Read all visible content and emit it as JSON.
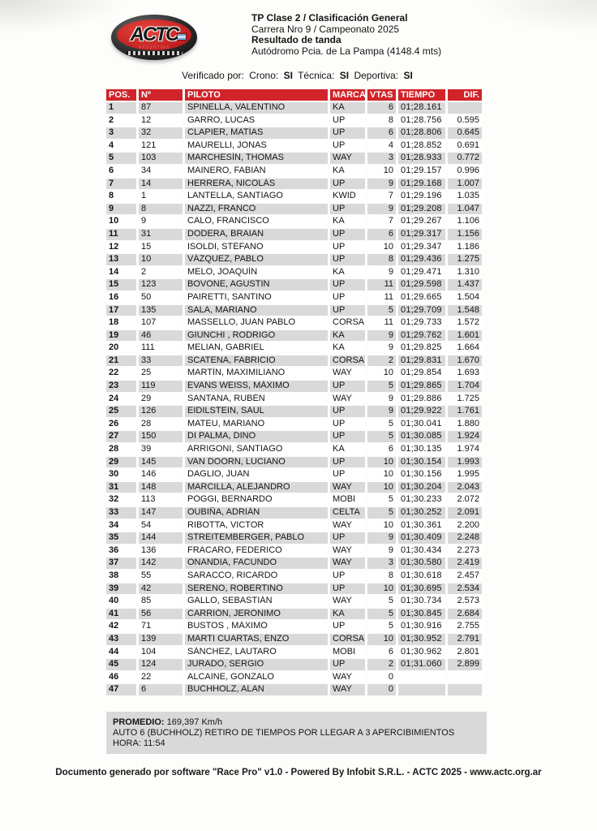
{
  "logo": {
    "text": "ACTC",
    "subtext": "ARGENTINA"
  },
  "header": {
    "title": "TP Clase 2 / Clasificación General",
    "subtitle": "Carrera Nro 9 / Campeonato 2025",
    "result_label": "Resultado de tanda",
    "venue": "Autódromo Pcia. de La Pampa (4148.4 mts)"
  },
  "verification": {
    "prefix": "Verificado por:",
    "crono_label": "Crono:",
    "crono_value": "SI",
    "tecnica_label": "Técnica:",
    "tecnica_value": "SI",
    "deportiva_label": "Deportiva:",
    "deportiva_value": "SI"
  },
  "table": {
    "columns": [
      "POS.",
      "Nº",
      "PILOTO",
      "MARCA",
      "VTAS",
      "TIEMPO",
      "DIF."
    ],
    "rows": [
      [
        "1",
        "87",
        "SPINELLA, VALENTINO",
        "KA",
        "6",
        "01;28.161",
        ""
      ],
      [
        "2",
        "12",
        "GARRO, LUCAS",
        "UP",
        "8",
        "01;28.756",
        "0.595"
      ],
      [
        "3",
        "32",
        "CLAPIER, MATÍAS",
        "UP",
        "6",
        "01;28.806",
        "0.645"
      ],
      [
        "4",
        "121",
        "MAURELLI, JONAS",
        "UP",
        "4",
        "01;28.852",
        "0.691"
      ],
      [
        "5",
        "103",
        "MARCHESÍN, THOMAS",
        "WAY",
        "3",
        "01;28.933",
        "0.772"
      ],
      [
        "6",
        "34",
        "MAINERO, FABIÁN",
        "KA",
        "10",
        "01;29.157",
        "0.996"
      ],
      [
        "7",
        "14",
        "HERRERA, NICOLÁS",
        "UP",
        "9",
        "01;29.168",
        "1.007"
      ],
      [
        "8",
        "1",
        "LANTELLA, SANTIAGO",
        "KWID",
        "7",
        "01;29.196",
        "1.035"
      ],
      [
        "9",
        "8",
        "NAZZI, FRANCO",
        "UP",
        "9",
        "01;29.208",
        "1.047"
      ],
      [
        "10",
        "9",
        "CALO, FRANCISCO",
        "KA",
        "7",
        "01;29.267",
        "1.106"
      ],
      [
        "11",
        "31",
        "DODERA, BRAIAN",
        "UP",
        "6",
        "01;29.317",
        "1.156"
      ],
      [
        "12",
        "15",
        "ISOLDI, STÉFANO",
        "UP",
        "10",
        "01;29.347",
        "1.186"
      ],
      [
        "13",
        "10",
        "VÁZQUEZ, PABLO",
        "UP",
        "8",
        "01;29.436",
        "1.275"
      ],
      [
        "14",
        "2",
        "MELO, JOAQUÍN",
        "KA",
        "9",
        "01;29.471",
        "1.310"
      ],
      [
        "15",
        "123",
        "BOVONE, AGUSTIN",
        "UP",
        "11",
        "01;29.598",
        "1.437"
      ],
      [
        "16",
        "50",
        "PAIRETTI, SANTINO",
        "UP",
        "11",
        "01;29.665",
        "1.504"
      ],
      [
        "17",
        "135",
        "SALA, MARIANO",
        "UP",
        "5",
        "01;29.709",
        "1.548"
      ],
      [
        "18",
        "107",
        "MASSELLO, JUAN PABLO",
        "CORSA",
        "11",
        "01;29.733",
        "1.572"
      ],
      [
        "19",
        "46",
        "GIUNCHI , RODRIGO",
        "KA",
        "9",
        "01;29.762",
        "1.601"
      ],
      [
        "20",
        "111",
        "MELIAN, GABRIEL",
        "KA",
        "9",
        "01;29.825",
        "1.664"
      ],
      [
        "21",
        "33",
        "SCATENA, FABRICIO",
        "CORSA",
        "2",
        "01;29.831",
        "1.670"
      ],
      [
        "22",
        "25",
        "MARTÍN, MAXIMILIANO",
        "WAY",
        "10",
        "01;29.854",
        "1.693"
      ],
      [
        "23",
        "119",
        "EVANS WEISS, MÁXIMO",
        "UP",
        "5",
        "01;29.865",
        "1.704"
      ],
      [
        "24",
        "29",
        "SANTANA, RUBÉN",
        "WAY",
        "9",
        "01;29.886",
        "1.725"
      ],
      [
        "25",
        "126",
        "EIDILSTEIN, SAUL",
        "UP",
        "9",
        "01;29.922",
        "1.761"
      ],
      [
        "26",
        "28",
        "MATEU, MARIANO",
        "UP",
        "5",
        "01;30.041",
        "1.880"
      ],
      [
        "27",
        "150",
        "DI PALMA, DINO",
        "UP",
        "5",
        "01;30.085",
        "1.924"
      ],
      [
        "28",
        "39",
        "ARRIGONI, SANTIAGO",
        "KA",
        "6",
        "01;30.135",
        "1.974"
      ],
      [
        "29",
        "145",
        "VAN DOORN, LUCIANO",
        "UP",
        "10",
        "01;30.154",
        "1.993"
      ],
      [
        "30",
        "146",
        "DAGLIO, JUAN",
        "UP",
        "10",
        "01;30.156",
        "1.995"
      ],
      [
        "31",
        "148",
        "MARCILLA, ALEJANDRO",
        "WAY",
        "10",
        "01;30.204",
        "2.043"
      ],
      [
        "32",
        "113",
        "POGGI, BERNARDO",
        "MOBI",
        "5",
        "01;30.233",
        "2.072"
      ],
      [
        "33",
        "147",
        "OUBIÑA, ADRIÁN",
        "CELTA",
        "5",
        "01;30.252",
        "2.091"
      ],
      [
        "34",
        "54",
        "RIBOTTA, VICTOR",
        "WAY",
        "10",
        "01;30.361",
        "2.200"
      ],
      [
        "35",
        "144",
        "STREITEMBERGER, PABLO",
        "UP",
        "9",
        "01;30.409",
        "2.248"
      ],
      [
        "36",
        "136",
        "FRACARO, FEDERICO",
        "WAY",
        "9",
        "01;30.434",
        "2.273"
      ],
      [
        "37",
        "142",
        "ONANDIA, FACUNDO",
        "WAY",
        "3",
        "01;30.580",
        "2.419"
      ],
      [
        "38",
        "55",
        "SARACCO, RICARDO",
        "UP",
        "8",
        "01;30.618",
        "2.457"
      ],
      [
        "39",
        "42",
        "SERENO, ROBERTINO",
        "UP",
        "10",
        "01;30.695",
        "2.534"
      ],
      [
        "40",
        "85",
        "GALLO, SEBASTIÁN",
        "WAY",
        "5",
        "01;30.734",
        "2.573"
      ],
      [
        "41",
        "56",
        "CARRIÓN, JERÓNIMO",
        "KA",
        "5",
        "01;30.845",
        "2.684"
      ],
      [
        "42",
        "71",
        "BUSTOS , MÁXIMO",
        "UP",
        "5",
        "01;30.916",
        "2.755"
      ],
      [
        "43",
        "139",
        "MARTI CUARTAS, ENZO",
        "CORSA",
        "10",
        "01;30.952",
        "2.791"
      ],
      [
        "44",
        "104",
        "SÁNCHEZ, LAUTARO",
        "MOBI",
        "6",
        "01;30.962",
        "2.801"
      ],
      [
        "45",
        "124",
        "JURADO, SERGIO",
        "UP",
        "2",
        "01;31.060",
        "2.899"
      ],
      [
        "46",
        "22",
        "ALCAINE, GONZALO",
        "WAY",
        "0",
        "",
        ""
      ],
      [
        "47",
        "6",
        "BUCHHOLZ, ALAN",
        "WAY",
        "0",
        "",
        ""
      ]
    ]
  },
  "summary": {
    "promedio_label": "PROMEDIO:",
    "promedio_value": "169,397 Km/h",
    "note": "AUTO 6 (BUCHHOLZ) RETIRO DE TIEMPOS POR LLEGAR A 3 APERCIBIMIENTOS",
    "hora": "HORA: 11:54"
  },
  "footer": {
    "text": "Documento generado por software \"Race Pro\" v1.0 - Powered By Infobit S.R.L. - ACTC 2025 - www.actc.org.ar"
  },
  "colors": {
    "accent_red": "#d0242a",
    "row_gray": "#d9d9d9",
    "logo_red": "#c01f1f"
  }
}
